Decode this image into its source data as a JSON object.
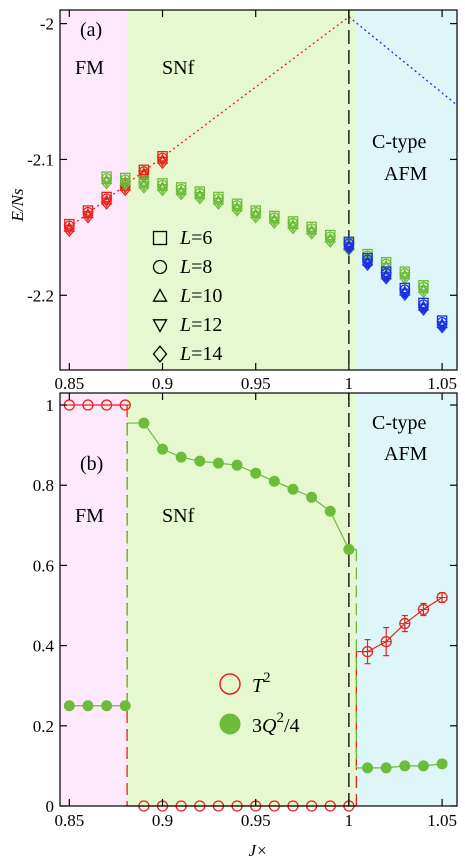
{
  "figure": {
    "xlabel": "J×",
    "xticks": [
      "0.85",
      "0.9",
      "0.95",
      "1",
      "1.05"
    ],
    "colors": {
      "fm_bg": "#fde9fb",
      "snf_bg": "#e6f8cf",
      "afm_bg": "#dff6f9",
      "red": "#e8231b",
      "green": "#6dbb3a",
      "blue": "#1b2fe6",
      "black": "#000000"
    }
  },
  "chart_data": [
    {
      "panel": "(a)",
      "type": "scatter",
      "ylabel": "E/Ns",
      "xlim": [
        0.845,
        1.058
      ],
      "ylim": [
        -2.255,
        -1.99
      ],
      "yticks": [
        "-2",
        "-2.1",
        "-2.2"
      ],
      "regions": [
        {
          "label": "FM",
          "x_from": 0.845,
          "x_to": 0.881,
          "color": "fm_bg"
        },
        {
          "label": "SNf",
          "x_from": 0.881,
          "x_to": 1.004,
          "color": "snf_bg"
        },
        {
          "label": "C-type",
          "label2": "AFM",
          "x_from": 1.004,
          "x_to": 1.058,
          "color": "afm_bg"
        }
      ],
      "boundaries": [
        1.0
      ],
      "legend": [
        "L=6",
        "L=8",
        "L=10",
        "L=12",
        "L=14"
      ],
      "legend_markers": [
        "square",
        "circle",
        "triangle-up",
        "triangle-down",
        "diamond"
      ],
      "guide_lines": [
        {
          "x": [
            0.85,
            1.0
          ],
          "y": [
            -2.15,
            -1.995
          ],
          "color": "red"
        },
        {
          "x": [
            1.0,
            1.058
          ],
          "y": [
            -1.995,
            -2.06
          ],
          "color": "blue"
        }
      ],
      "series": [
        {
          "color": "red",
          "x": [
            0.85,
            0.86,
            0.87,
            0.88,
            0.89,
            0.9
          ],
          "y": [
            -2.15,
            -2.14,
            -2.13,
            -2.12,
            -2.11,
            -2.1
          ]
        },
        {
          "color": "green",
          "x": [
            0.87,
            0.88,
            0.89,
            0.9,
            0.91,
            0.92,
            0.93,
            0.94,
            0.95,
            0.96,
            0.97,
            0.98,
            0.99,
            1.0,
            1.01,
            1.02,
            1.03,
            1.04
          ],
          "y": [
            -2.115,
            -2.116,
            -2.118,
            -2.12,
            -2.123,
            -2.126,
            -2.13,
            -2.135,
            -2.14,
            -2.144,
            -2.148,
            -2.152,
            -2.158,
            -2.164,
            -2.172,
            -2.178,
            -2.185,
            -2.195
          ]
        },
        {
          "color": "blue",
          "x": [
            1.0,
            1.01,
            1.02,
            1.03,
            1.04,
            1.05
          ],
          "y": [
            -2.163,
            -2.175,
            -2.185,
            -2.197,
            -2.208,
            -2.221
          ]
        }
      ]
    },
    {
      "panel": "(b)",
      "type": "line",
      "xlim": [
        0.845,
        1.058
      ],
      "ylim": [
        0,
        1.03
      ],
      "yticks": [
        "0",
        "0.2",
        "0.4",
        "0.6",
        "0.8",
        "1"
      ],
      "regions": [
        {
          "label": "FM",
          "x_from": 0.845,
          "x_to": 0.881,
          "color": "fm_bg"
        },
        {
          "label": "SNf",
          "x_from": 0.881,
          "x_to": 1.004,
          "color": "snf_bg"
        },
        {
          "label": "C-type",
          "label2": "AFM",
          "x_from": 1.004,
          "x_to": 1.058,
          "color": "afm_bg"
        }
      ],
      "boundaries": [
        1.0
      ],
      "legend_pos": "bottom-right",
      "series": [
        {
          "name": "T",
          "sup": "2",
          "marker": "open-circle",
          "color": "red",
          "segments": [
            {
              "x": [
                0.85,
                0.86,
                0.87,
                0.88
              ],
              "y": [
                1,
                1,
                1,
                1
              ]
            },
            {
              "x": [
                0.89,
                0.9,
                0.91,
                0.92,
                0.93,
                0.94,
                0.95,
                0.96,
                0.97,
                0.98,
                0.99,
                1.0
              ],
              "y": [
                0,
                0,
                0,
                0,
                0,
                0,
                0,
                0,
                0,
                0,
                0,
                0
              ]
            },
            {
              "x": [
                1.01,
                1.02,
                1.03,
                1.04,
                1.05
              ],
              "y": [
                0.385,
                0.41,
                0.455,
                0.49,
                0.52
              ]
            }
          ],
          "errors": [
            [
              1.01,
              0.03
            ],
            [
              1.02,
              0.035
            ],
            [
              1.03,
              0.02
            ],
            [
              1.04,
              0.015
            ],
            [
              1.05,
              0.012
            ]
          ]
        },
        {
          "name": "3Q",
          "sup": "2",
          "suffix": "/4",
          "marker": "filled-circle",
          "color": "green",
          "segments": [
            {
              "x": [
                0.85,
                0.86,
                0.87,
                0.88
              ],
              "y": [
                0.25,
                0.25,
                0.25,
                0.25
              ]
            },
            {
              "x": [
                0.89,
                0.9,
                0.91,
                0.92,
                0.93,
                0.94,
                0.95,
                0.96,
                0.97,
                0.98,
                0.99,
                1.0
              ],
              "y": [
                0.955,
                0.89,
                0.87,
                0.86,
                0.855,
                0.85,
                0.83,
                0.81,
                0.79,
                0.77,
                0.735,
                0.64
              ]
            },
            {
              "x": [
                1.01,
                1.02,
                1.03,
                1.04,
                1.05
              ],
              "y": [
                0.095,
                0.095,
                0.1,
                0.1,
                0.105
              ]
            }
          ]
        }
      ]
    }
  ]
}
